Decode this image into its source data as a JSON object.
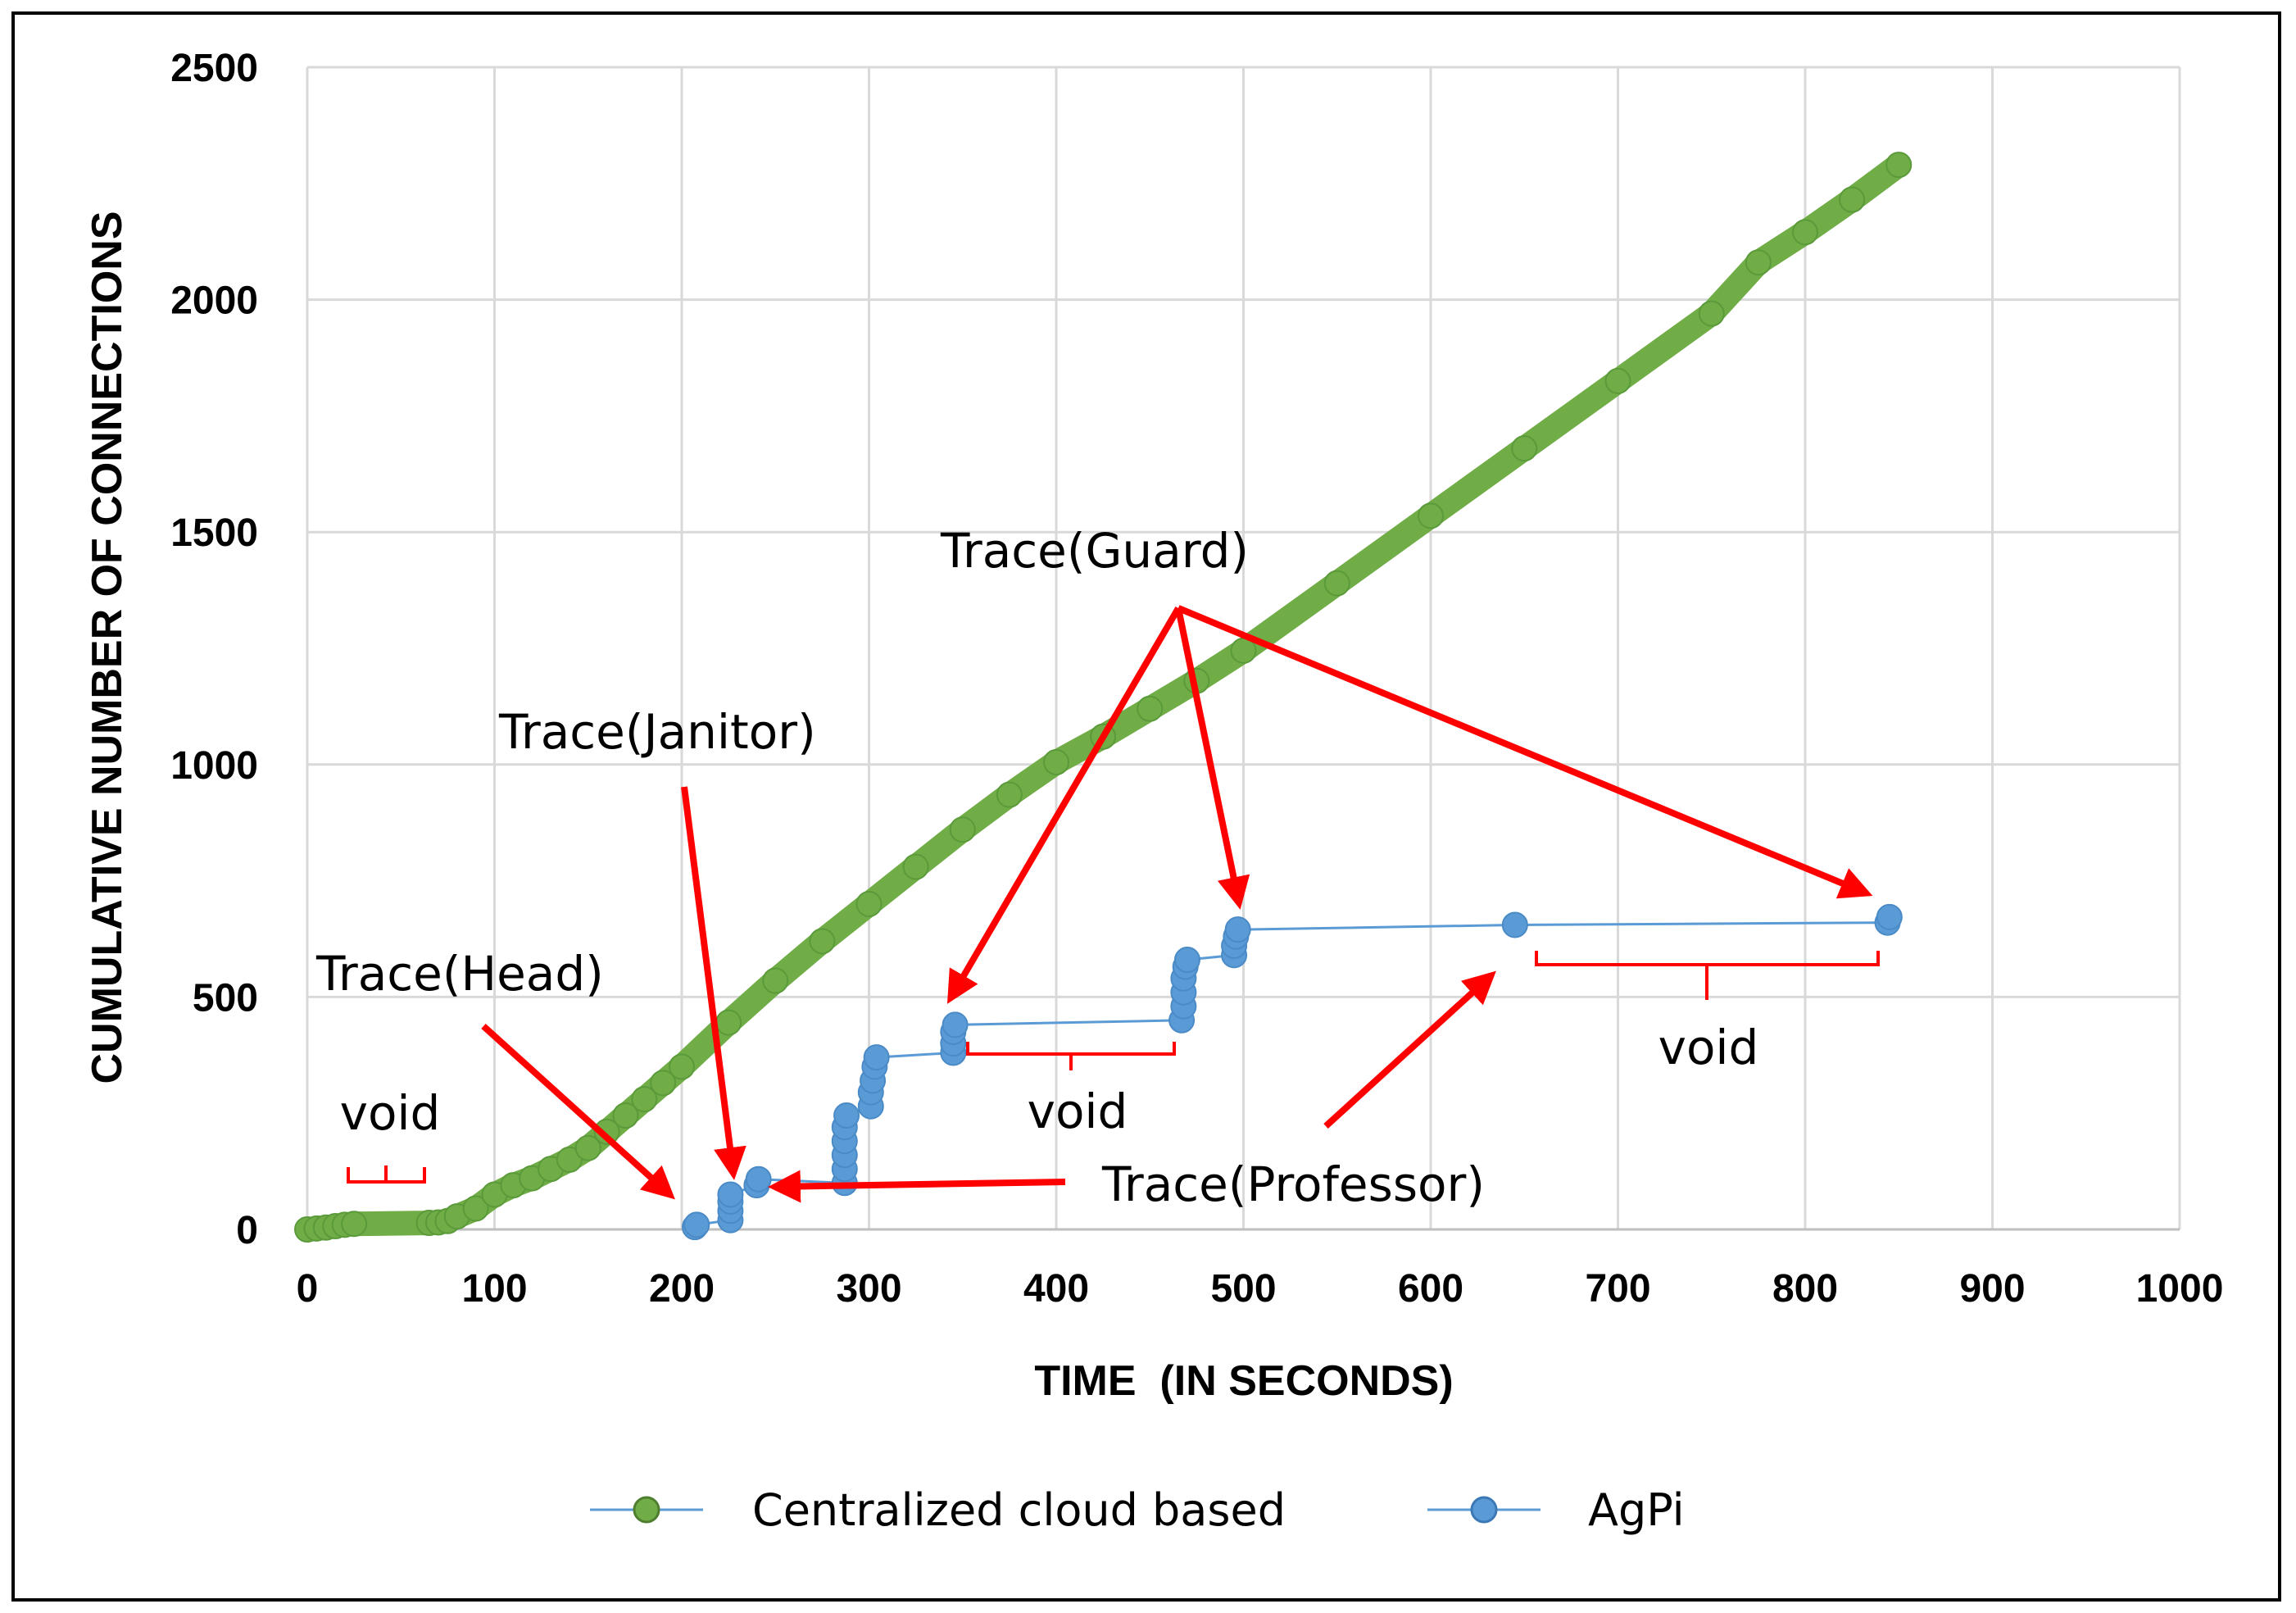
{
  "chart_data": {
    "type": "scatter",
    "title": "",
    "xlabel": "TIME  (IN SECONDS)",
    "ylabel": "CUMULATIVE NUMBER OF CONNECTIONS",
    "xlim": [
      0,
      1000
    ],
    "ylim": [
      0,
      2500
    ],
    "x_ticks": [
      "0",
      "100",
      "200",
      "300",
      "400",
      "500",
      "600",
      "700",
      "800",
      "900",
      "1000"
    ],
    "y_ticks": [
      "0",
      "500",
      "1000",
      "1500",
      "2000",
      "2500"
    ],
    "grid": true,
    "legend_position": "bottom",
    "series": [
      {
        "name": "Centralized cloud based",
        "color": "#70ad47",
        "marker_color": "#5a9a3a",
        "points": [
          [
            0,
            0
          ],
          [
            5,
            2
          ],
          [
            10,
            4
          ],
          [
            15,
            7
          ],
          [
            20,
            10
          ],
          [
            25,
            12
          ],
          [
            65,
            14
          ],
          [
            70,
            15
          ],
          [
            75,
            18
          ],
          [
            80,
            28
          ],
          [
            90,
            45
          ],
          [
            100,
            75
          ],
          [
            110,
            95
          ],
          [
            120,
            110
          ],
          [
            130,
            130
          ],
          [
            140,
            150
          ],
          [
            150,
            175
          ],
          [
            160,
            210
          ],
          [
            170,
            245
          ],
          [
            180,
            280
          ],
          [
            190,
            315
          ],
          [
            200,
            350
          ],
          [
            225,
            445
          ],
          [
            250,
            535
          ],
          [
            275,
            620
          ],
          [
            300,
            700
          ],
          [
            325,
            780
          ],
          [
            350,
            860
          ],
          [
            375,
            935
          ],
          [
            400,
            1005
          ],
          [
            425,
            1060
          ],
          [
            450,
            1120
          ],
          [
            475,
            1180
          ],
          [
            500,
            1245
          ],
          [
            550,
            1390
          ],
          [
            600,
            1535
          ],
          [
            650,
            1680
          ],
          [
            700,
            1825
          ],
          [
            750,
            1970
          ],
          [
            775,
            2080
          ],
          [
            800,
            2145
          ],
          [
            825,
            2215
          ],
          [
            850,
            2290
          ]
        ]
      },
      {
        "name": "AgPi",
        "color": "#5b9bd5",
        "marker_color": "#5b9bd5",
        "points": [
          [
            207,
            5
          ],
          [
            208,
            10
          ],
          [
            226,
            20
          ],
          [
            226,
            40
          ],
          [
            226,
            60
          ],
          [
            226,
            75
          ],
          [
            240,
            95
          ],
          [
            241,
            108
          ],
          [
            287,
            100
          ],
          [
            287,
            130
          ],
          [
            287,
            160
          ],
          [
            287,
            190
          ],
          [
            287,
            220
          ],
          [
            288,
            245
          ],
          [
            301,
            265
          ],
          [
            301,
            295
          ],
          [
            302,
            320
          ],
          [
            303,
            350
          ],
          [
            304,
            370
          ],
          [
            345,
            380
          ],
          [
            345,
            400
          ],
          [
            345,
            425
          ],
          [
            346,
            440
          ],
          [
            467,
            450
          ],
          [
            468,
            480
          ],
          [
            468,
            510
          ],
          [
            468,
            540
          ],
          [
            469,
            565
          ],
          [
            470,
            580
          ],
          [
            495,
            590
          ],
          [
            495,
            610
          ],
          [
            496,
            630
          ],
          [
            497,
            645
          ],
          [
            645,
            655
          ],
          [
            844,
            660
          ],
          [
            845,
            672
          ]
        ]
      }
    ],
    "annotations": [
      "Trace(Head)",
      "Trace(Janitor)",
      "Trace(Guard)",
      "Trace(Professor)"
    ],
    "void_labels": [
      "void",
      "void",
      "void"
    ]
  }
}
